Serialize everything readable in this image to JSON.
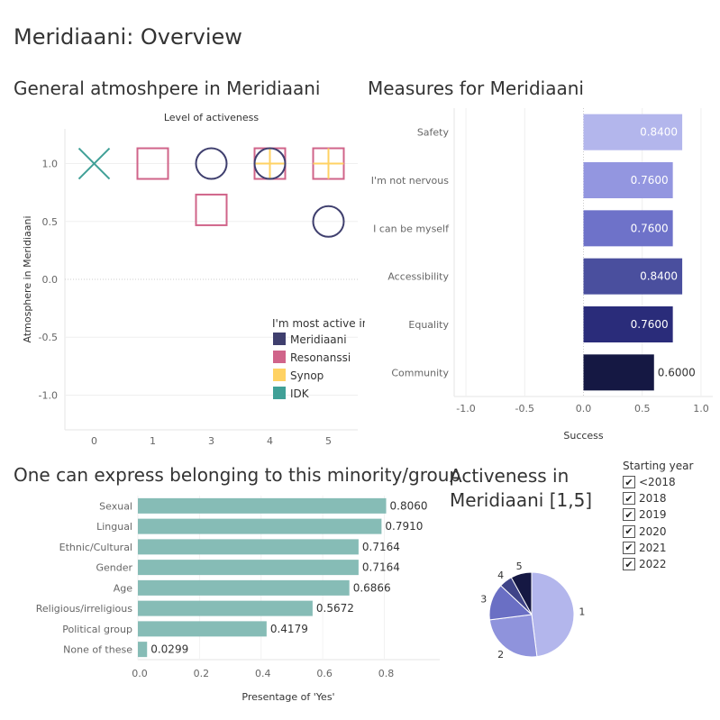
{
  "page_title": "Meridiaani: Overview",
  "colors": {
    "meridiaani": "#3f3f6e",
    "resonanssi": "#d0648a",
    "synop": "#ffd263",
    "idk": "#40a097",
    "teal_bar": "#86bcb6",
    "measure_bars": [
      "#b3b6ec",
      "#9396e0",
      "#6e72c9",
      "#4a4f9e",
      "#2a2c7a",
      "#151843"
    ],
    "pie": [
      "#b3b6ec",
      "#8f93dc",
      "#6a6fc4",
      "#3f4488",
      "#151843"
    ]
  },
  "chart_data": [
    {
      "type": "scatter",
      "title": "General atmoshpere in Meridiaani",
      "xlabel": "Level of activeness",
      "ylabel": "Atmosphere in Meridiaani",
      "categories": [
        "0",
        "1",
        "3",
        "4",
        "5"
      ],
      "yticks": [
        "1.0",
        "0.5",
        "0.0",
        "-0.5",
        "-1.0"
      ],
      "ylim": [
        -1.3,
        1.3
      ],
      "grid": true,
      "legend_title": "I'm most active in",
      "legend_position": "bottom-right",
      "series": [
        {
          "name": "Meridiaani",
          "shape": "circle",
          "points": [
            {
              "x": "3",
              "y": 1.0
            },
            {
              "x": "4",
              "y": 1.0
            },
            {
              "x": "5",
              "y": 0.5
            }
          ]
        },
        {
          "name": "Resonanssi",
          "shape": "square",
          "points": [
            {
              "x": "1",
              "y": 1.0
            },
            {
              "x": "3",
              "y": 0.6
            },
            {
              "x": "4",
              "y": 1.0
            },
            {
              "x": "5",
              "y": 1.0
            }
          ]
        },
        {
          "name": "Synop",
          "shape": "plus",
          "points": [
            {
              "x": "4",
              "y": 1.0
            },
            {
              "x": "5",
              "y": 1.0
            }
          ]
        },
        {
          "name": "IDK",
          "shape": "cross",
          "points": [
            {
              "x": "0",
              "y": 1.0
            }
          ]
        }
      ]
    },
    {
      "type": "bar",
      "orientation": "horizontal",
      "title": "Measures for Meridiaani",
      "xlabel": "Success",
      "xlim": [
        -1.1,
        1.1
      ],
      "xticks": [
        -1.0,
        -0.5,
        0.0,
        0.5,
        1.0
      ],
      "xtick_labels": [
        "-1.0",
        "-0.5",
        "0.0",
        "0.5",
        "1.0"
      ],
      "categories": [
        "Safety",
        "I'm not nervous",
        "I can be myself",
        "Accessibility",
        "Equality",
        "Community"
      ],
      "values": [
        0.84,
        0.76,
        0.76,
        0.84,
        0.76,
        0.6
      ],
      "labels": [
        "0.8400",
        "0.7600",
        "0.7600",
        "0.8400",
        "0.7600",
        "0.6000"
      ]
    },
    {
      "type": "bar",
      "orientation": "horizontal",
      "title": "One can express belonging to this minority/group",
      "xlabel": "Presentage of 'Yes'",
      "xlim": [
        0,
        0.98
      ],
      "xticks": [
        0.0,
        0.2,
        0.4,
        0.6,
        0.8
      ],
      "xtick_labels": [
        "0.0",
        "0.2",
        "0.4",
        "0.6",
        "0.8"
      ],
      "categories": [
        "Sexual",
        "Lingual",
        "Ethnic/Cultural",
        "Gender",
        "Age",
        "Religious/irreligious",
        "Political group",
        "None of these"
      ],
      "values": [
        0.806,
        0.791,
        0.7164,
        0.7164,
        0.6866,
        0.5672,
        0.4179,
        0.0299
      ],
      "labels": [
        "0.8060",
        "0.7910",
        "0.7164",
        "0.7164",
        "0.6866",
        "0.5672",
        "0.4179",
        "0.0299"
      ]
    },
    {
      "type": "pie",
      "title": "Activeness in Meridiaani [1,5]",
      "categories": [
        "1",
        "2",
        "3",
        "4",
        "5"
      ],
      "values": [
        0.48,
        0.25,
        0.14,
        0.05,
        0.08
      ]
    }
  ],
  "filter": {
    "title": "Starting year",
    "items": [
      {
        "label": "<2018",
        "checked": true
      },
      {
        "label": "2018",
        "checked": true
      },
      {
        "label": "2019",
        "checked": true
      },
      {
        "label": "2020",
        "checked": true
      },
      {
        "label": "2021",
        "checked": true
      },
      {
        "label": "2022",
        "checked": true
      }
    ]
  }
}
